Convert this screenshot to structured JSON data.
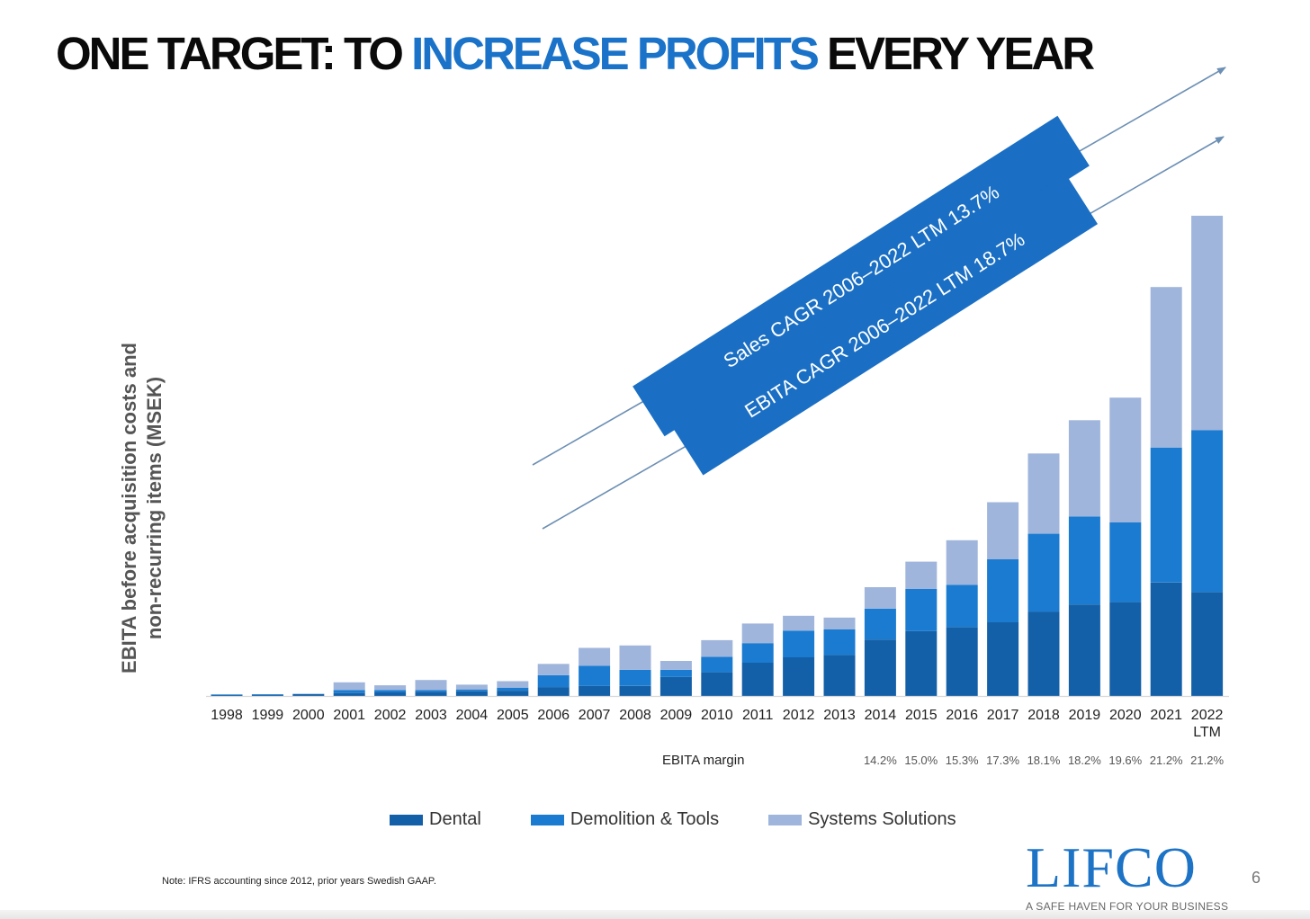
{
  "slide": {
    "title_part1": "ONE TARGET: TO ",
    "title_highlight": "INCREASE PROFITS",
    "title_part2": " EVERY YEAR",
    "footnote": "Note: IFRS accounting since 2012, prior years Swedish GAAP.",
    "logo": "LIFCO",
    "tagline": "A SAFE HAVEN FOR YOUR BUSINESS",
    "page_number": "6"
  },
  "chart_data": {
    "type": "bar",
    "stacked": true,
    "ylabel_line1": "EBITA before acquisition costs and",
    "ylabel_line2": "non-recurring items (MSEK)",
    "categories": [
      "1998",
      "1999",
      "2000",
      "2001",
      "2002",
      "2003",
      "2004",
      "2005",
      "2006",
      "2007",
      "2008",
      "2009",
      "2010",
      "2011",
      "2012",
      "2013",
      "2014",
      "2015",
      "2016",
      "2017",
      "2018",
      "2019",
      "2020",
      "2021",
      "2022\nLTM"
    ],
    "series": [
      {
        "name": "Dental",
        "color": "#1460a8",
        "values": [
          15,
          20,
          30,
          50,
          60,
          70,
          80,
          90,
          150,
          170,
          170,
          320,
          400,
          560,
          650,
          690,
          950,
          1090,
          1160,
          1240,
          1420,
          1540,
          1580,
          1910,
          1750
        ]
      },
      {
        "name": "Demolition & Tools",
        "color": "#1a7bd0",
        "values": [
          10,
          10,
          5,
          50,
          40,
          30,
          30,
          50,
          200,
          340,
          270,
          120,
          260,
          330,
          450,
          430,
          520,
          710,
          710,
          1060,
          1310,
          1480,
          1340,
          2270,
          2720
        ]
      },
      {
        "name": "Systems Solutions",
        "color": "#9fb5dc",
        "values": [
          0,
          0,
          0,
          130,
          80,
          170,
          80,
          110,
          190,
          300,
          410,
          150,
          280,
          330,
          250,
          200,
          360,
          460,
          750,
          960,
          1350,
          1620,
          2100,
          2700,
          3610
        ]
      }
    ],
    "legend": [
      "Dental",
      "Demolition & Tools",
      "Systems Solutions"
    ],
    "legend_position": "bottom",
    "ylim": [
      0,
      8200
    ],
    "ebita_margin": {
      "label": "EBITA margin",
      "years": [
        "2014",
        "2015",
        "2016",
        "2017",
        "2018",
        "2019",
        "2020",
        "2021",
        "2022\nLTM"
      ],
      "values": [
        "14.2%",
        "15.0%",
        "15.3%",
        "17.3%",
        "18.1%",
        "18.2%",
        "19.6%",
        "21.2%",
        "21.2%"
      ]
    },
    "annotations": [
      {
        "text": "Sales CAGR 2006–2022 LTM 13.7%"
      },
      {
        "text": "EBITA CAGR 2006–2022 LTM 18.7%"
      }
    ],
    "colors": {
      "dental": "#1460a8",
      "demolition": "#1a7bd0",
      "systems": "#9fb5dc",
      "banner": "#1a6fc4",
      "arrow": "#6c8fb4",
      "highlight": "#1a73c8"
    }
  }
}
